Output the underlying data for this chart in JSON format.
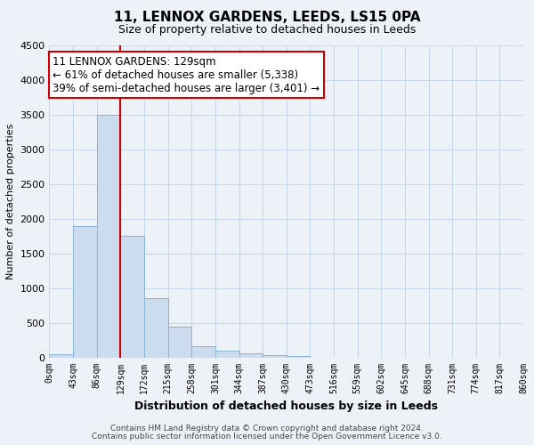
{
  "title": "11, LENNOX GARDENS, LEEDS, LS15 0PA",
  "subtitle": "Size of property relative to detached houses in Leeds",
  "xlabel": "Distribution of detached houses by size in Leeds",
  "ylabel": "Number of detached properties",
  "bin_labels": [
    "0sqm",
    "43sqm",
    "86sqm",
    "129sqm",
    "172sqm",
    "215sqm",
    "258sqm",
    "301sqm",
    "344sqm",
    "387sqm",
    "430sqm",
    "473sqm",
    "516sqm",
    "559sqm",
    "602sqm",
    "645sqm",
    "688sqm",
    "731sqm",
    "774sqm",
    "817sqm",
    "860sqm"
  ],
  "bar_heights": [
    50,
    1900,
    3500,
    1750,
    850,
    450,
    165,
    95,
    55,
    30,
    20,
    0,
    0,
    0,
    0,
    0,
    0,
    0,
    0,
    0
  ],
  "bar_color": "#ccdcee",
  "bar_edge_color": "#8ab4d4",
  "vline_color": "#cc0000",
  "annotation_text": "11 LENNOX GARDENS: 129sqm\n← 61% of detached houses are smaller (5,338)\n39% of semi-detached houses are larger (3,401) →",
  "annotation_box_color": "#ffffff",
  "annotation_box_edge": "#cc0000",
  "footer_line1": "Contains HM Land Registry data © Crown copyright and database right 2024.",
  "footer_line2": "Contains public sector information licensed under the Open Government Licence v3.0.",
  "grid_color": "#c8d8ec",
  "bg_color": "#edf2f9",
  "ylim": [
    0,
    4500
  ],
  "yticks": [
    0,
    500,
    1000,
    1500,
    2000,
    2500,
    3000,
    3500,
    4000,
    4500
  ]
}
